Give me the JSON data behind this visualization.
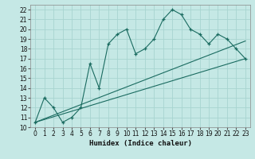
{
  "title": "",
  "xlabel": "Humidex (Indice chaleur)",
  "bg_color": "#c5e8e5",
  "grid_color": "#a8d4d0",
  "line_color": "#1a6b60",
  "xlim": [
    -0.5,
    23.5
  ],
  "ylim": [
    10,
    22.5
  ],
  "yticks": [
    10,
    11,
    12,
    13,
    14,
    15,
    16,
    17,
    18,
    19,
    20,
    21,
    22
  ],
  "xticks": [
    0,
    1,
    2,
    3,
    4,
    5,
    6,
    7,
    8,
    9,
    10,
    11,
    12,
    13,
    14,
    15,
    16,
    17,
    18,
    19,
    20,
    21,
    22,
    23
  ],
  "curve1_x": [
    0,
    1,
    2,
    3,
    4,
    5,
    6,
    7,
    8,
    9,
    10,
    11,
    12,
    13,
    14,
    15,
    16,
    17,
    18,
    19,
    20,
    21,
    22,
    23
  ],
  "curve1_y": [
    10.5,
    13.0,
    12.0,
    10.5,
    11.0,
    12.0,
    16.5,
    14.0,
    18.5,
    19.5,
    20.0,
    17.5,
    18.0,
    19.0,
    21.0,
    22.0,
    21.5,
    20.0,
    19.5,
    18.5,
    19.5,
    19.0,
    18.0,
    17.0
  ],
  "line2_x": [
    0,
    23
  ],
  "line2_y": [
    10.5,
    17.0
  ],
  "line3_x": [
    0,
    23
  ],
  "line3_y": [
    10.5,
    18.8
  ]
}
